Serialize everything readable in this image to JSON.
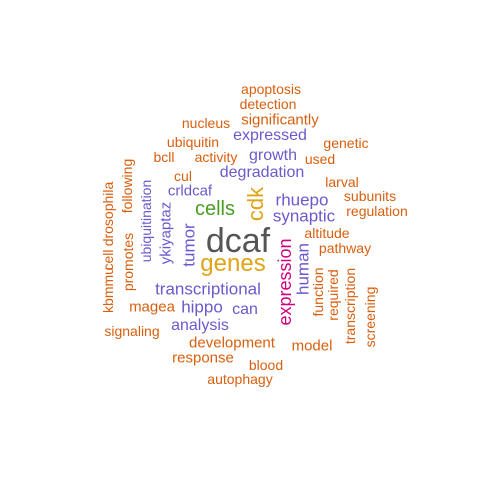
{
  "colors": {
    "orange": "#d95f0e",
    "purple": "#6a5acd",
    "green": "#4a9d23",
    "gold": "#e1a317",
    "magenta": "#d1007f",
    "gray": "#555555"
  },
  "words": [
    {
      "text": "apoptosis",
      "color": "orange"
    },
    {
      "text": "detection",
      "color": "orange"
    },
    {
      "text": "nucleus",
      "color": "orange"
    },
    {
      "text": "significantly",
      "color": "orange"
    },
    {
      "text": "expressed",
      "color": "purple"
    },
    {
      "text": "genetic",
      "color": "orange"
    },
    {
      "text": "ubiquitin",
      "color": "orange"
    },
    {
      "text": "bcll",
      "color": "orange"
    },
    {
      "text": "activity",
      "color": "orange"
    },
    {
      "text": "growth",
      "color": "purple"
    },
    {
      "text": "used",
      "color": "orange"
    },
    {
      "text": "cul",
      "color": "orange"
    },
    {
      "text": "degradation",
      "color": "purple"
    },
    {
      "text": "larval",
      "color": "orange"
    },
    {
      "text": "crldcaf",
      "color": "purple"
    },
    {
      "text": "subunits",
      "color": "orange"
    },
    {
      "text": "rhuepo",
      "color": "purple"
    },
    {
      "text": "regulation",
      "color": "orange"
    },
    {
      "text": "cells",
      "color": "green"
    },
    {
      "text": "synaptic",
      "color": "purple"
    },
    {
      "text": "cdk",
      "color": "gold"
    },
    {
      "text": "altitude",
      "color": "orange"
    },
    {
      "text": "dcaf",
      "color": "gray"
    },
    {
      "text": "pathway",
      "color": "orange"
    },
    {
      "text": "genes",
      "color": "gold"
    },
    {
      "text": "tumor",
      "color": "purple"
    },
    {
      "text": "ykiyaptaz",
      "color": "purple"
    },
    {
      "text": "ubiquitination",
      "color": "purple"
    },
    {
      "text": "drosophila",
      "color": "orange"
    },
    {
      "text": "promotes",
      "color": "orange"
    },
    {
      "text": "following",
      "color": "orange"
    },
    {
      "text": "cell",
      "color": "orange"
    },
    {
      "text": "kbmmu",
      "color": "orange"
    },
    {
      "text": "expression",
      "color": "magenta"
    },
    {
      "text": "human",
      "color": "purple"
    },
    {
      "text": "function",
      "color": "orange"
    },
    {
      "text": "required",
      "color": "orange"
    },
    {
      "text": "transcription",
      "color": "orange"
    },
    {
      "text": "screening",
      "color": "orange"
    },
    {
      "text": "transcriptional",
      "color": "purple"
    },
    {
      "text": "magea",
      "color": "orange"
    },
    {
      "text": "hippo",
      "color": "purple"
    },
    {
      "text": "can",
      "color": "purple"
    },
    {
      "text": "analysis",
      "color": "purple"
    },
    {
      "text": "signaling",
      "color": "orange"
    },
    {
      "text": "development",
      "color": "orange"
    },
    {
      "text": "model",
      "color": "orange"
    },
    {
      "text": "response",
      "color": "orange"
    },
    {
      "text": "blood",
      "color": "orange"
    },
    {
      "text": "autophagy",
      "color": "orange"
    }
  ]
}
